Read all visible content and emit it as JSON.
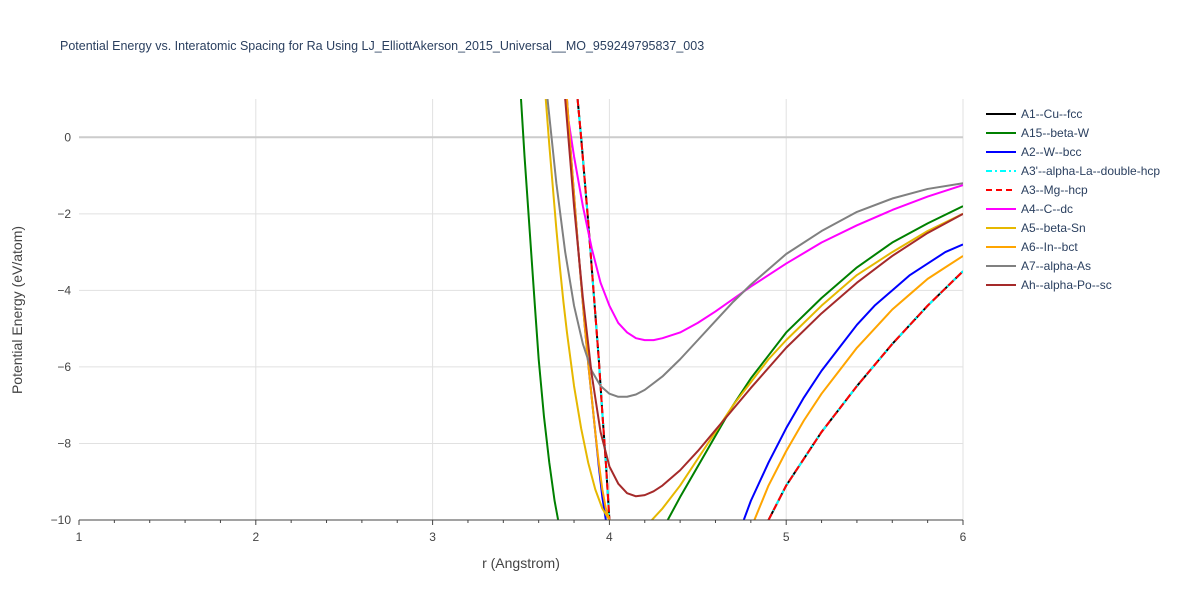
{
  "chart_data": {
    "type": "line",
    "title": "Potential Energy vs. Interatomic Spacing for Ra Using LJ_ElliottAkerson_2015_Universal__MO_959249795837_003",
    "xlabel": "r (Angstrom)",
    "ylabel": "Potential Energy (eV/atom)",
    "xlim": [
      1,
      6
    ],
    "ylim": [
      -10,
      1
    ],
    "x_ticks": [
      1,
      2,
      3,
      4,
      5,
      6
    ],
    "y_ticks": [
      0,
      -2,
      -4,
      -6,
      -8,
      -10
    ],
    "x_tick_labels": [
      "1",
      "2",
      "3",
      "4",
      "5",
      "6"
    ],
    "y_tick_labels": [
      "0",
      "−2",
      "−4",
      "−6",
      "−8",
      "−10"
    ],
    "grid": true,
    "legend_position": "right",
    "series": [
      {
        "name": "A1--Cu--fcc",
        "color": "#000000",
        "dash": "solid",
        "x": [
          3.82,
          3.84,
          3.86,
          3.88,
          3.9,
          3.92,
          3.94,
          3.96,
          3.98,
          4.0,
          4.9,
          5.0,
          5.2,
          5.4,
          5.6,
          5.8,
          6.0
        ],
        "y": [
          1.0,
          0.0,
          -1.1,
          -2.2,
          -3.4,
          -4.6,
          -5.8,
          -7.2,
          -8.5,
          -10.0,
          -10.0,
          -9.1,
          -7.7,
          -6.5,
          -5.4,
          -4.4,
          -3.5
        ]
      },
      {
        "name": "A15--beta-W",
        "color": "#008000",
        "dash": "solid",
        "x": [
          3.5,
          3.52,
          3.55,
          3.58,
          3.6,
          3.63,
          3.66,
          3.69,
          3.71,
          4.33,
          4.4,
          4.5,
          4.6,
          4.7,
          4.8,
          4.9,
          5.0,
          5.2,
          5.4,
          5.6,
          5.8,
          6.0
        ],
        "y": [
          1.0,
          -0.5,
          -2.5,
          -4.5,
          -5.8,
          -7.3,
          -8.5,
          -9.5,
          -10.0,
          -10.0,
          -9.4,
          -8.6,
          -7.8,
          -7.0,
          -6.3,
          -5.7,
          -5.1,
          -4.2,
          -3.4,
          -2.75,
          -2.25,
          -1.8
        ]
      },
      {
        "name": "A2--W--bcc",
        "color": "#0000ff",
        "dash": "solid",
        "x": [
          3.76,
          3.78,
          3.8,
          3.82,
          3.84,
          3.86,
          3.88,
          3.9,
          3.92,
          3.94,
          3.96,
          3.98,
          4.76,
          4.8,
          4.9,
          5.0,
          5.1,
          5.2,
          5.3,
          5.4,
          5.5,
          5.6,
          5.7,
          5.8,
          5.9,
          6.0
        ],
        "y": [
          1.0,
          -0.3,
          -1.5,
          -2.7,
          -3.8,
          -4.9,
          -5.9,
          -6.8,
          -7.7,
          -8.6,
          -9.4,
          -10.0,
          -10.0,
          -9.5,
          -8.5,
          -7.6,
          -6.8,
          -6.1,
          -5.5,
          -4.9,
          -4.4,
          -4.0,
          -3.6,
          -3.3,
          -3.0,
          -2.8
        ]
      },
      {
        "name": "A3'--alpha-La--double-hcp",
        "color": "#00ffff",
        "dash": "dashdot",
        "x": [
          3.82,
          3.84,
          3.86,
          3.88,
          3.9,
          3.92,
          3.94,
          3.96,
          3.98,
          4.0,
          4.9,
          5.0,
          5.2,
          5.4,
          5.6,
          5.8,
          6.0
        ],
        "y": [
          1.0,
          0.0,
          -1.1,
          -2.2,
          -3.4,
          -4.6,
          -5.8,
          -7.2,
          -8.5,
          -10.0,
          -10.0,
          -9.1,
          -7.7,
          -6.5,
          -5.4,
          -4.4,
          -3.5
        ]
      },
      {
        "name": "A3--Mg--hcp",
        "color": "#ff0000",
        "dash": "dash",
        "x": [
          3.82,
          3.84,
          3.86,
          3.88,
          3.9,
          3.92,
          3.94,
          3.96,
          3.98,
          4.0,
          4.9,
          5.0,
          5.2,
          5.4,
          5.6,
          5.8,
          6.0
        ],
        "y": [
          1.0,
          0.0,
          -1.1,
          -2.2,
          -3.4,
          -4.6,
          -5.8,
          -7.2,
          -8.5,
          -10.0,
          -10.0,
          -9.1,
          -7.7,
          -6.5,
          -5.4,
          -4.4,
          -3.5
        ]
      },
      {
        "name": "A4--C--dc",
        "color": "#ff00ff",
        "dash": "solid",
        "x": [
          3.75,
          3.8,
          3.85,
          3.9,
          3.95,
          4.0,
          4.05,
          4.1,
          4.15,
          4.2,
          4.25,
          4.3,
          4.4,
          4.5,
          4.6,
          4.8,
          5.0,
          5.2,
          5.4,
          5.6,
          5.8,
          6.0
        ],
        "y": [
          1.0,
          -0.5,
          -1.8,
          -2.9,
          -3.8,
          -4.4,
          -4.85,
          -5.1,
          -5.25,
          -5.3,
          -5.3,
          -5.25,
          -5.1,
          -4.85,
          -4.55,
          -3.9,
          -3.3,
          -2.75,
          -2.3,
          -1.9,
          -1.55,
          -1.25
        ]
      },
      {
        "name": "A5--beta-Sn",
        "color": "#e6b800",
        "dash": "solid",
        "x": [
          3.64,
          3.66,
          3.68,
          3.7,
          3.72,
          3.74,
          3.76,
          3.78,
          3.8,
          3.84,
          3.88,
          3.92,
          3.96,
          4.0,
          4.01,
          4.24,
          4.3,
          4.4,
          4.5,
          4.6,
          4.7,
          4.8,
          4.9,
          5.0,
          5.2,
          5.4,
          5.6,
          5.8,
          6.0
        ],
        "y": [
          1.0,
          -0.2,
          -1.3,
          -2.4,
          -3.4,
          -4.3,
          -5.1,
          -5.8,
          -6.5,
          -7.6,
          -8.5,
          -9.2,
          -9.7,
          -10.0,
          -10.0,
          -10.0,
          -9.7,
          -9.1,
          -8.4,
          -7.7,
          -7.0,
          -6.4,
          -5.8,
          -5.3,
          -4.4,
          -3.6,
          -3.0,
          -2.45,
          -2.0
        ]
      },
      {
        "name": "A6--In--bct",
        "color": "#ffa500",
        "dash": "solid",
        "x": [
          3.76,
          3.78,
          3.8,
          3.82,
          3.84,
          3.86,
          3.88,
          3.9,
          3.92,
          3.94,
          3.96,
          3.98,
          4.0,
          4.01,
          4.82,
          4.9,
          5.0,
          5.1,
          5.2,
          5.3,
          5.4,
          5.5,
          5.6,
          5.7,
          5.8,
          5.9,
          6.0
        ],
        "y": [
          1.0,
          -0.3,
          -1.5,
          -2.7,
          -3.8,
          -4.9,
          -5.9,
          -6.8,
          -7.7,
          -8.5,
          -9.2,
          -9.7,
          -10.0,
          -10.0,
          -10.0,
          -9.1,
          -8.2,
          -7.4,
          -6.7,
          -6.1,
          -5.5,
          -5.0,
          -4.5,
          -4.1,
          -3.7,
          -3.4,
          -3.1
        ]
      },
      {
        "name": "A7--alpha-As",
        "color": "#808080",
        "dash": "solid",
        "x": [
          3.65,
          3.7,
          3.75,
          3.8,
          3.85,
          3.9,
          3.95,
          4.0,
          4.05,
          4.1,
          4.15,
          4.2,
          4.3,
          4.4,
          4.5,
          4.6,
          4.7,
          4.8,
          5.0,
          5.2,
          5.4,
          5.6,
          5.8,
          6.0
        ],
        "y": [
          1.0,
          -1.2,
          -3.0,
          -4.4,
          -5.4,
          -6.1,
          -6.5,
          -6.7,
          -6.78,
          -6.78,
          -6.72,
          -6.6,
          -6.25,
          -5.8,
          -5.3,
          -4.8,
          -4.3,
          -3.85,
          -3.05,
          -2.45,
          -1.95,
          -1.6,
          -1.35,
          -1.2
        ]
      },
      {
        "name": "Ah--alpha-Po--sc",
        "color": "#a52a2a",
        "dash": "solid",
        "x": [
          3.75,
          3.8,
          3.85,
          3.9,
          3.95,
          4.0,
          4.05,
          4.1,
          4.15,
          4.2,
          4.25,
          4.3,
          4.4,
          4.5,
          4.6,
          4.7,
          4.8,
          5.0,
          5.2,
          5.4,
          5.6,
          5.8,
          6.0
        ],
        "y": [
          1.0,
          -1.8,
          -4.2,
          -6.2,
          -7.7,
          -8.6,
          -9.05,
          -9.3,
          -9.38,
          -9.35,
          -9.25,
          -9.1,
          -8.7,
          -8.2,
          -7.65,
          -7.1,
          -6.55,
          -5.5,
          -4.6,
          -3.8,
          -3.1,
          -2.5,
          -2.0
        ]
      }
    ]
  }
}
